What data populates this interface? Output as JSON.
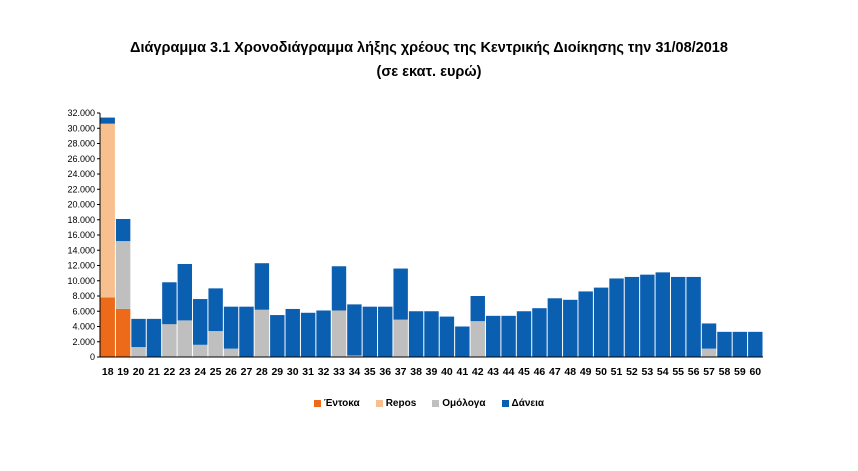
{
  "title": "Διάγραμμα 3.1 Χρονοδιάγραμμα λήξης χρέους της Κεντρικής Διοίκησης την 31/08/2018",
  "subtitle": "(σε εκατ. ευρώ)",
  "chart_data": {
    "type": "bar",
    "stacked": true,
    "categories": [
      "18",
      "19",
      "20",
      "21",
      "22",
      "23",
      "24",
      "25",
      "26",
      "27",
      "28",
      "29",
      "30",
      "31",
      "32",
      "33",
      "34",
      "35",
      "36",
      "37",
      "38",
      "39",
      "40",
      "41",
      "42",
      "43",
      "44",
      "45",
      "46",
      "47",
      "48",
      "49",
      "50",
      "51",
      "52",
      "53",
      "54",
      "55",
      "56",
      "57",
      "58",
      "59",
      "60"
    ],
    "series": [
      {
        "name": "Έντοκα",
        "color": "#ED6A1A",
        "values": [
          7800,
          6300,
          0,
          0,
          0,
          0,
          0,
          0,
          0,
          0,
          0,
          0,
          0,
          0,
          0,
          0,
          0,
          0,
          0,
          0,
          0,
          0,
          0,
          0,
          0,
          0,
          0,
          0,
          0,
          0,
          0,
          0,
          0,
          0,
          0,
          0,
          0,
          0,
          0,
          0,
          0,
          0,
          0
        ]
      },
      {
        "name": "Repos",
        "color": "#F9C08F",
        "values": [
          22800,
          0,
          0,
          0,
          0,
          0,
          0,
          0,
          0,
          0,
          0,
          0,
          0,
          0,
          0,
          0,
          0,
          0,
          0,
          0,
          0,
          0,
          0,
          0,
          0,
          0,
          0,
          0,
          0,
          0,
          0,
          0,
          0,
          0,
          0,
          0,
          0,
          0,
          0,
          0,
          0,
          0,
          0
        ]
      },
      {
        "name": "Ομόλογα",
        "color": "#BFBFBF",
        "values": [
          0,
          8900,
          1300,
          0,
          4300,
          4800,
          1600,
          3400,
          1100,
          0,
          6200,
          0,
          0,
          0,
          0,
          6100,
          200,
          0,
          0,
          4900,
          0,
          0,
          0,
          0,
          4700,
          0,
          0,
          0,
          0,
          0,
          0,
          0,
          0,
          0,
          0,
          0,
          0,
          0,
          0,
          1100,
          0,
          0,
          0
        ]
      },
      {
        "name": "Δάνεια",
        "color": "#0B5FB0",
        "values": [
          800,
          2900,
          3700,
          5000,
          5500,
          7400,
          6000,
          5600,
          5500,
          6600,
          6100,
          5500,
          6300,
          5800,
          6100,
          5800,
          6700,
          6600,
          6600,
          6700,
          6000,
          6000,
          5300,
          4000,
          3300,
          5400,
          5400,
          6000,
          6400,
          7700,
          7500,
          8600,
          9100,
          10300,
          10500,
          10800,
          11100,
          10500,
          10500,
          3300,
          3300,
          3300,
          3300
        ]
      }
    ],
    "ylim": [
      0,
      32000
    ],
    "yticks": [
      "0",
      "2.000",
      "4.000",
      "6.000",
      "8.000",
      "10.000",
      "12.000",
      "14.000",
      "16.000",
      "18.000",
      "20.000",
      "22.000",
      "24.000",
      "26.000",
      "28.000",
      "30.000",
      "32.000"
    ],
    "grid": false,
    "legend_position": "bottom"
  }
}
